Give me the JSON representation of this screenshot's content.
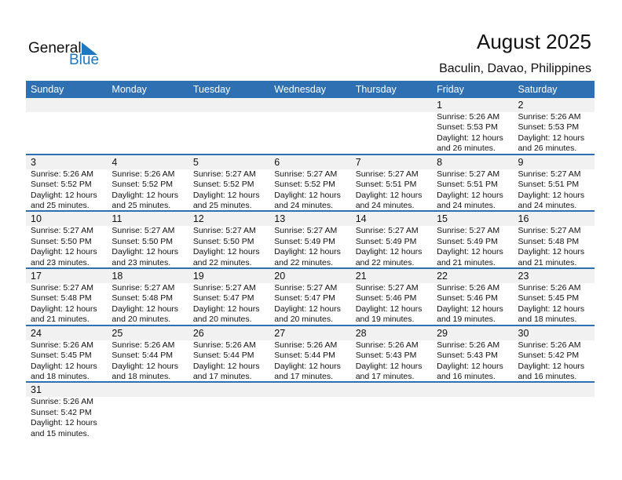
{
  "logo": {
    "line1": "General",
    "line2": "Blue"
  },
  "title": "August 2025",
  "location": "Baculin, Davao, Philippines",
  "weekdays": [
    "Sunday",
    "Monday",
    "Tuesday",
    "Wednesday",
    "Thursday",
    "Friday",
    "Saturday"
  ],
  "weeks": [
    [
      null,
      null,
      null,
      null,
      null,
      {
        "day": "1",
        "sunrise": "Sunrise: 5:26 AM",
        "sunset": "Sunset: 5:53 PM",
        "daylight1": "Daylight: 12 hours",
        "daylight2": "and 26 minutes."
      },
      {
        "day": "2",
        "sunrise": "Sunrise: 5:26 AM",
        "sunset": "Sunset: 5:53 PM",
        "daylight1": "Daylight: 12 hours",
        "daylight2": "and 26 minutes."
      }
    ],
    [
      {
        "day": "3",
        "sunrise": "Sunrise: 5:26 AM",
        "sunset": "Sunset: 5:52 PM",
        "daylight1": "Daylight: 12 hours",
        "daylight2": "and 25 minutes."
      },
      {
        "day": "4",
        "sunrise": "Sunrise: 5:26 AM",
        "sunset": "Sunset: 5:52 PM",
        "daylight1": "Daylight: 12 hours",
        "daylight2": "and 25 minutes."
      },
      {
        "day": "5",
        "sunrise": "Sunrise: 5:27 AM",
        "sunset": "Sunset: 5:52 PM",
        "daylight1": "Daylight: 12 hours",
        "daylight2": "and 25 minutes."
      },
      {
        "day": "6",
        "sunrise": "Sunrise: 5:27 AM",
        "sunset": "Sunset: 5:52 PM",
        "daylight1": "Daylight: 12 hours",
        "daylight2": "and 24 minutes."
      },
      {
        "day": "7",
        "sunrise": "Sunrise: 5:27 AM",
        "sunset": "Sunset: 5:51 PM",
        "daylight1": "Daylight: 12 hours",
        "daylight2": "and 24 minutes."
      },
      {
        "day": "8",
        "sunrise": "Sunrise: 5:27 AM",
        "sunset": "Sunset: 5:51 PM",
        "daylight1": "Daylight: 12 hours",
        "daylight2": "and 24 minutes."
      },
      {
        "day": "9",
        "sunrise": "Sunrise: 5:27 AM",
        "sunset": "Sunset: 5:51 PM",
        "daylight1": "Daylight: 12 hours",
        "daylight2": "and 24 minutes."
      }
    ],
    [
      {
        "day": "10",
        "sunrise": "Sunrise: 5:27 AM",
        "sunset": "Sunset: 5:50 PM",
        "daylight1": "Daylight: 12 hours",
        "daylight2": "and 23 minutes."
      },
      {
        "day": "11",
        "sunrise": "Sunrise: 5:27 AM",
        "sunset": "Sunset: 5:50 PM",
        "daylight1": "Daylight: 12 hours",
        "daylight2": "and 23 minutes."
      },
      {
        "day": "12",
        "sunrise": "Sunrise: 5:27 AM",
        "sunset": "Sunset: 5:50 PM",
        "daylight1": "Daylight: 12 hours",
        "daylight2": "and 22 minutes."
      },
      {
        "day": "13",
        "sunrise": "Sunrise: 5:27 AM",
        "sunset": "Sunset: 5:49 PM",
        "daylight1": "Daylight: 12 hours",
        "daylight2": "and 22 minutes."
      },
      {
        "day": "14",
        "sunrise": "Sunrise: 5:27 AM",
        "sunset": "Sunset: 5:49 PM",
        "daylight1": "Daylight: 12 hours",
        "daylight2": "and 22 minutes."
      },
      {
        "day": "15",
        "sunrise": "Sunrise: 5:27 AM",
        "sunset": "Sunset: 5:49 PM",
        "daylight1": "Daylight: 12 hours",
        "daylight2": "and 21 minutes."
      },
      {
        "day": "16",
        "sunrise": "Sunrise: 5:27 AM",
        "sunset": "Sunset: 5:48 PM",
        "daylight1": "Daylight: 12 hours",
        "daylight2": "and 21 minutes."
      }
    ],
    [
      {
        "day": "17",
        "sunrise": "Sunrise: 5:27 AM",
        "sunset": "Sunset: 5:48 PM",
        "daylight1": "Daylight: 12 hours",
        "daylight2": "and 21 minutes."
      },
      {
        "day": "18",
        "sunrise": "Sunrise: 5:27 AM",
        "sunset": "Sunset: 5:48 PM",
        "daylight1": "Daylight: 12 hours",
        "daylight2": "and 20 minutes."
      },
      {
        "day": "19",
        "sunrise": "Sunrise: 5:27 AM",
        "sunset": "Sunset: 5:47 PM",
        "daylight1": "Daylight: 12 hours",
        "daylight2": "and 20 minutes."
      },
      {
        "day": "20",
        "sunrise": "Sunrise: 5:27 AM",
        "sunset": "Sunset: 5:47 PM",
        "daylight1": "Daylight: 12 hours",
        "daylight2": "and 20 minutes."
      },
      {
        "day": "21",
        "sunrise": "Sunrise: 5:27 AM",
        "sunset": "Sunset: 5:46 PM",
        "daylight1": "Daylight: 12 hours",
        "daylight2": "and 19 minutes."
      },
      {
        "day": "22",
        "sunrise": "Sunrise: 5:26 AM",
        "sunset": "Sunset: 5:46 PM",
        "daylight1": "Daylight: 12 hours",
        "daylight2": "and 19 minutes."
      },
      {
        "day": "23",
        "sunrise": "Sunrise: 5:26 AM",
        "sunset": "Sunset: 5:45 PM",
        "daylight1": "Daylight: 12 hours",
        "daylight2": "and 18 minutes."
      }
    ],
    [
      {
        "day": "24",
        "sunrise": "Sunrise: 5:26 AM",
        "sunset": "Sunset: 5:45 PM",
        "daylight1": "Daylight: 12 hours",
        "daylight2": "and 18 minutes."
      },
      {
        "day": "25",
        "sunrise": "Sunrise: 5:26 AM",
        "sunset": "Sunset: 5:44 PM",
        "daylight1": "Daylight: 12 hours",
        "daylight2": "and 18 minutes."
      },
      {
        "day": "26",
        "sunrise": "Sunrise: 5:26 AM",
        "sunset": "Sunset: 5:44 PM",
        "daylight1": "Daylight: 12 hours",
        "daylight2": "and 17 minutes."
      },
      {
        "day": "27",
        "sunrise": "Sunrise: 5:26 AM",
        "sunset": "Sunset: 5:44 PM",
        "daylight1": "Daylight: 12 hours",
        "daylight2": "and 17 minutes."
      },
      {
        "day": "28",
        "sunrise": "Sunrise: 5:26 AM",
        "sunset": "Sunset: 5:43 PM",
        "daylight1": "Daylight: 12 hours",
        "daylight2": "and 17 minutes."
      },
      {
        "day": "29",
        "sunrise": "Sunrise: 5:26 AM",
        "sunset": "Sunset: 5:43 PM",
        "daylight1": "Daylight: 12 hours",
        "daylight2": "and 16 minutes."
      },
      {
        "day": "30",
        "sunrise": "Sunrise: 5:26 AM",
        "sunset": "Sunset: 5:42 PM",
        "daylight1": "Daylight: 12 hours",
        "daylight2": "and 16 minutes."
      }
    ],
    [
      {
        "day": "31",
        "sunrise": "Sunrise: 5:26 AM",
        "sunset": "Sunset: 5:42 PM",
        "daylight1": "Daylight: 12 hours",
        "daylight2": "and 15 minutes."
      },
      null,
      null,
      null,
      null,
      null,
      null
    ]
  ],
  "colors": {
    "header": "#2f70b3",
    "date_band": "#f1f1f1",
    "logo_blue": "#1d78c1"
  }
}
